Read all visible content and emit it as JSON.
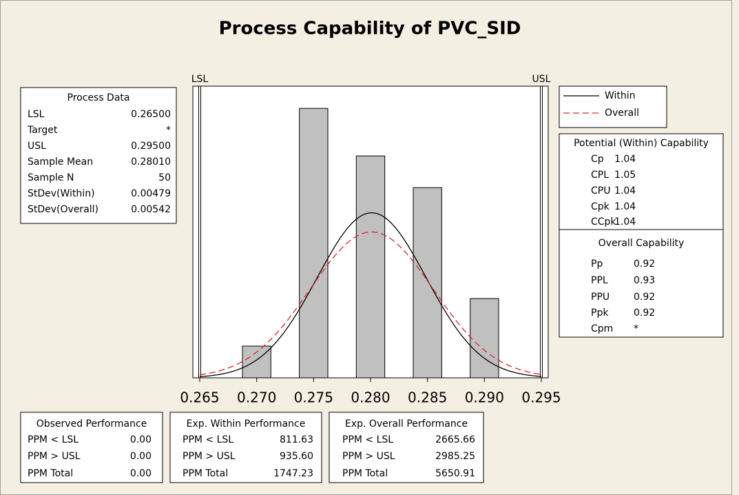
{
  "chart_data": {
    "type": "histogram",
    "title": "Process Capability of PVC_SID",
    "bins": [
      0.26875,
      0.27125,
      0.27375,
      0.27625,
      0.27875,
      0.28125,
      0.28375,
      0.28625,
      0.28875,
      0.29125
    ],
    "values": [
      2,
      0,
      17,
      0,
      14,
      0,
      12,
      0,
      5
    ],
    "color": "#c0c0c0",
    "xlim": [
      0.265,
      0.295
    ],
    "xticks": [
      0.265,
      {
        "value": 0.27,
        "label": "0.270"
      },
      0.275,
      {
        "value": 0.28,
        "label": "0.280"
      },
      0.285,
      {
        "value": 0.29,
        "label": "0.290"
      },
      0.295
    ],
    "ylim": [
      0,
      18.4
    ],
    "spec_limits": [
      {
        "label": "LSL",
        "value": 0.265
      },
      {
        "label": "USL",
        "value": 0.295
      }
    ],
    "series": [
      {
        "name": "Within",
        "color": "#000000",
        "dash": false
      },
      {
        "name": "Overall",
        "color": "#e0202a",
        "dash": true
      }
    ]
  },
  "tables": {
    "process_data": {
      "title": "Process Data",
      "rows": [
        [
          "LSL",
          "0.26500"
        ],
        [
          "Target",
          "*"
        ],
        [
          "USL",
          "0.29500"
        ],
        [
          "Sample Mean",
          "0.28010"
        ],
        [
          "Sample N",
          "50"
        ],
        [
          "StDev(Within)",
          "0.00479"
        ],
        [
          "StDev(Overall)",
          "0.00542"
        ]
      ]
    },
    "potential": {
      "title": "Potential (Within) Capability",
      "rows": [
        [
          "Cp",
          "1.04"
        ],
        [
          "CPL",
          "1.05"
        ],
        [
          "CPU",
          "1.04"
        ],
        [
          "Cpk",
          "1.04"
        ],
        [
          "CCpk",
          "1.04"
        ]
      ]
    },
    "overall": {
      "title": "Overall Capability",
      "rows": [
        [
          "Pp",
          "0.92"
        ],
        [
          "PPL",
          "0.93"
        ],
        [
          "PPU",
          "0.92"
        ],
        [
          "Ppk",
          "0.92"
        ],
        [
          "Cpm",
          "*"
        ]
      ]
    },
    "observed": {
      "title": "Observed Performance",
      "rows": [
        [
          "PPM < LSL",
          "0.00"
        ],
        [
          "PPM > USL",
          "0.00"
        ],
        [
          "PPM Total",
          "0.00"
        ]
      ]
    },
    "exp_within": {
      "title": "Exp. Within Performance",
      "rows": [
        [
          "PPM < LSL",
          "811.63"
        ],
        [
          "PPM > USL",
          "935.60"
        ],
        [
          "PPM Total",
          "1747.23"
        ]
      ]
    },
    "exp_overall": {
      "title": "Exp. Overall Performance",
      "rows": [
        [
          "PPM < LSL",
          "2665.66"
        ],
        [
          "PPM > USL",
          "2985.25"
        ],
        [
          "PPM Total",
          "5650.91"
        ]
      ]
    }
  }
}
